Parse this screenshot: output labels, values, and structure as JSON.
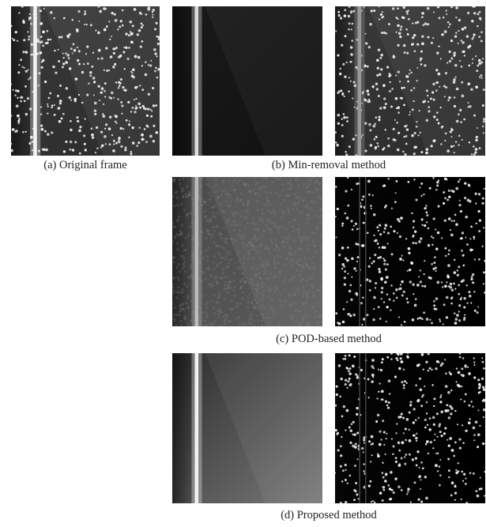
{
  "captions": [
    "(a) Original frame",
    "(b) Min-removal method",
    "(c) POD-based method",
    "(d) Proposed method"
  ]
}
